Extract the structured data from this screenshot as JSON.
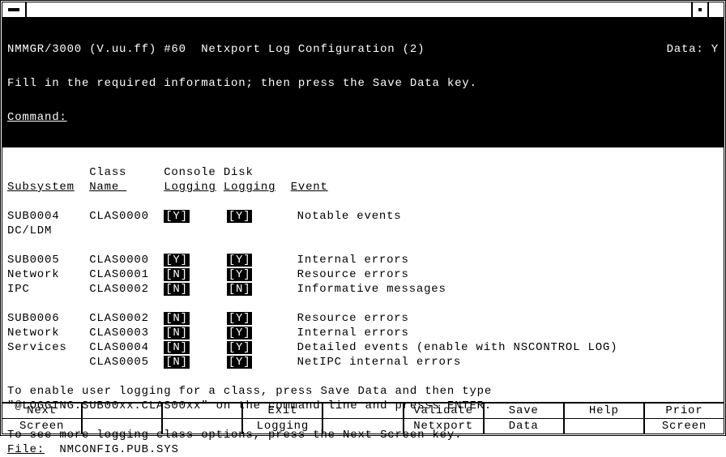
{
  "titlebar": {},
  "header": {
    "title_left": "NMMGR/3000 (V.uu.ff) #60  Netxport Log Configuration (2)",
    "title_right": "Data: Y",
    "instruction": "Fill in the required information; then press the Save Data key.",
    "command_label": "Command:"
  },
  "columns": {
    "subsystem": "Subsystem",
    "class_name_top": "Class",
    "class_name_bot": "Name ",
    "console_top": "Console",
    "console_bot": "Logging",
    "disk_top": "Disk",
    "disk_bot": "Logging",
    "event": "Event"
  },
  "groups": [
    {
      "rows": [
        {
          "sub": "SUB0004",
          "cls": "CLAS0000",
          "con": "[Y]",
          "dsk": "[Y]",
          "evt": "Notable events"
        },
        {
          "sub": "DC/LDM",
          "cls": "",
          "con": "",
          "dsk": "",
          "evt": ""
        }
      ]
    },
    {
      "rows": [
        {
          "sub": "SUB0005",
          "cls": "CLAS0000",
          "con": "[Y]",
          "dsk": "[Y]",
          "evt": "Internal errors"
        },
        {
          "sub": "Network",
          "cls": "CLAS0001",
          "con": "[N]",
          "dsk": "[Y]",
          "evt": "Resource errors"
        },
        {
          "sub": "IPC",
          "cls": "CLAS0002",
          "con": "[N]",
          "dsk": "[N]",
          "evt": "Informative messages"
        }
      ]
    },
    {
      "rows": [
        {
          "sub": "SUB0006",
          "cls": "CLAS0002",
          "con": "[N]",
          "dsk": "[Y]",
          "evt": "Resource errors"
        },
        {
          "sub": "Network",
          "cls": "CLAS0003",
          "con": "[N]",
          "dsk": "[Y]",
          "evt": "Internal errors"
        },
        {
          "sub": "Services",
          "cls": "CLAS0004",
          "con": "[N]",
          "dsk": "[Y]",
          "evt": "Detailed events (enable with NSCONTROL LOG)"
        },
        {
          "sub": "",
          "cls": "CLAS0005",
          "con": "[N]",
          "dsk": "[Y]",
          "evt": "NetIPC internal errors"
        }
      ]
    }
  ],
  "footer_text": {
    "l1": "To enable user logging for a class, press Save Data and then type",
    "l2": "\"@LOGGING.SUB00xx.CLAS00xx\" on the command line and presss ENTER.",
    "l3": "To see more logging class options, press the Next Screen key.",
    "file_label": "File:",
    "file_value": "NMCONFIG.PUB.SYS"
  },
  "fnkeys": {
    "top": [
      "Next",
      "",
      "",
      "Exit",
      "",
      "Validate",
      "Save",
      "Help",
      "Prior"
    ],
    "bottom": [
      "Screen",
      "",
      "",
      "Logging",
      "",
      "Netxport",
      "Data",
      "",
      "Screen"
    ]
  }
}
